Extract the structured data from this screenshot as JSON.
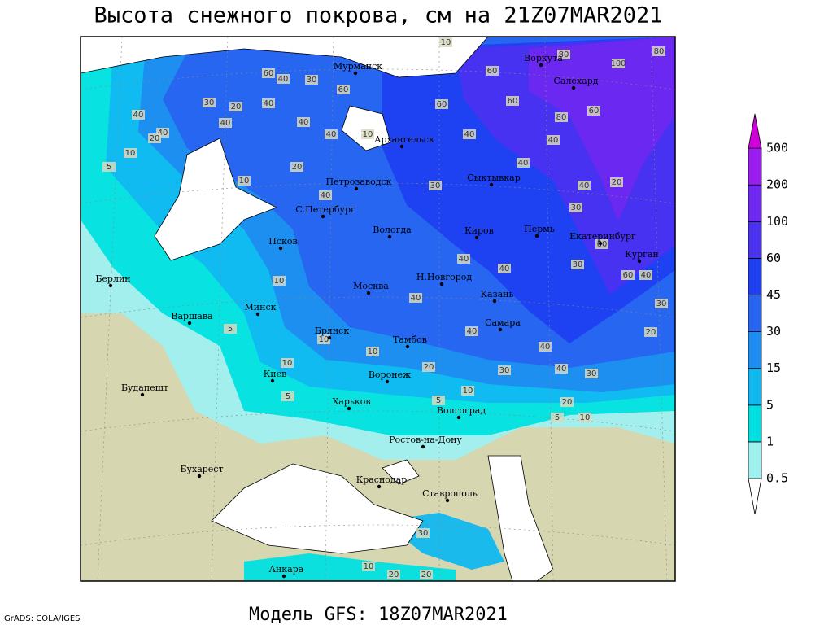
{
  "title": "Высота снежного покрова, см на 21Z07MAR2021",
  "model": "Модель GFS: 18Z07MAR2021",
  "credit": "GrADS: COLA/IGES",
  "cities": [
    "Мурманск",
    "Воркута",
    "Салехард",
    "Архангельск",
    "Петрозаводск",
    "Сыктывкар",
    "С.Петербург",
    "Вологда",
    "Киров",
    "Пермь",
    "Екатеринбург",
    "Курган",
    "Псков",
    "Берлин",
    "Москва",
    "Н.Новгород",
    "Казань",
    "Минск",
    "Варшава",
    "Самара",
    "Брянск",
    "Тамбов",
    "Воронеж",
    "Киев",
    "Будапешт",
    "Харьков",
    "Волгоград",
    "Ростов-на-Дону",
    "Бухарест",
    "Краснодар",
    "Ставрополь",
    "Анкара"
  ],
  "colorbar": {
    "levels": [
      0.5,
      1,
      5,
      15,
      30,
      45,
      60,
      100,
      200,
      500
    ],
    "colors": [
      "#ffffff",
      "#a0f0f0",
      "#00e0e0",
      "#10b8f0",
      "#1e8cf0",
      "#2864f0",
      "#1e40f0",
      "#4a32f0",
      "#6e28f0",
      "#9a1ef0",
      "#d000d8"
    ]
  },
  "contour_labels": [
    10,
    60,
    40,
    30,
    60,
    60,
    80,
    100,
    80,
    60,
    60,
    80,
    60,
    30,
    20,
    40,
    40,
    20,
    40,
    40,
    40,
    40,
    10,
    40,
    40,
    40,
    40,
    20,
    10,
    20,
    40,
    30,
    30,
    60,
    60,
    40,
    30,
    20,
    30,
    40,
    40,
    10,
    5,
    40,
    40,
    40,
    40,
    30,
    30,
    20,
    10,
    10,
    10,
    5,
    5,
    10,
    20,
    5,
    10,
    10,
    20,
    20,
    30,
    5,
    10
  ]
}
